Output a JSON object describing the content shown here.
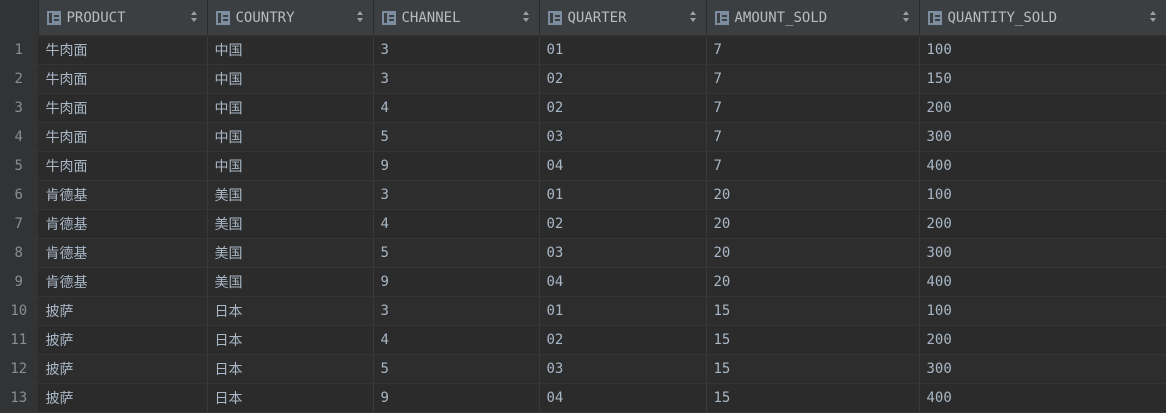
{
  "columns": [
    "PRODUCT",
    "COUNTRY",
    "CHANNEL",
    "QUARTER",
    "AMOUNT_SOLD",
    "QUANTITY_SOLD"
  ],
  "rows": [
    {
      "n": "1",
      "cells": [
        "牛肉面",
        "中国",
        "3",
        "01",
        "7",
        "100"
      ]
    },
    {
      "n": "2",
      "cells": [
        "牛肉面",
        "中国",
        "3",
        "02",
        "7",
        "150"
      ]
    },
    {
      "n": "3",
      "cells": [
        "牛肉面",
        "中国",
        "4",
        "02",
        "7",
        "200"
      ]
    },
    {
      "n": "4",
      "cells": [
        "牛肉面",
        "中国",
        "5",
        "03",
        "7",
        "300"
      ]
    },
    {
      "n": "5",
      "cells": [
        "牛肉面",
        "中国",
        "9",
        "04",
        "7",
        "400"
      ]
    },
    {
      "n": "6",
      "cells": [
        "肯德基",
        "美国",
        "3",
        "01",
        "20",
        "100"
      ]
    },
    {
      "n": "7",
      "cells": [
        "肯德基",
        "美国",
        "4",
        "02",
        "20",
        "200"
      ]
    },
    {
      "n": "8",
      "cells": [
        "肯德基",
        "美国",
        "5",
        "03",
        "20",
        "300"
      ]
    },
    {
      "n": "9",
      "cells": [
        "肯德基",
        "美国",
        "9",
        "04",
        "20",
        "400"
      ]
    },
    {
      "n": "10",
      "cells": [
        "披萨",
        "日本",
        "3",
        "01",
        "15",
        "100"
      ]
    },
    {
      "n": "11",
      "cells": [
        "披萨",
        "日本",
        "4",
        "02",
        "15",
        "200"
      ]
    },
    {
      "n": "12",
      "cells": [
        "披萨",
        "日本",
        "5",
        "03",
        "15",
        "300"
      ]
    },
    {
      "n": "13",
      "cells": [
        "披萨",
        "日本",
        "9",
        "04",
        "15",
        "400"
      ]
    }
  ],
  "icons": {
    "column": "table-column-icon",
    "sort": "sort-toggle-icon"
  }
}
